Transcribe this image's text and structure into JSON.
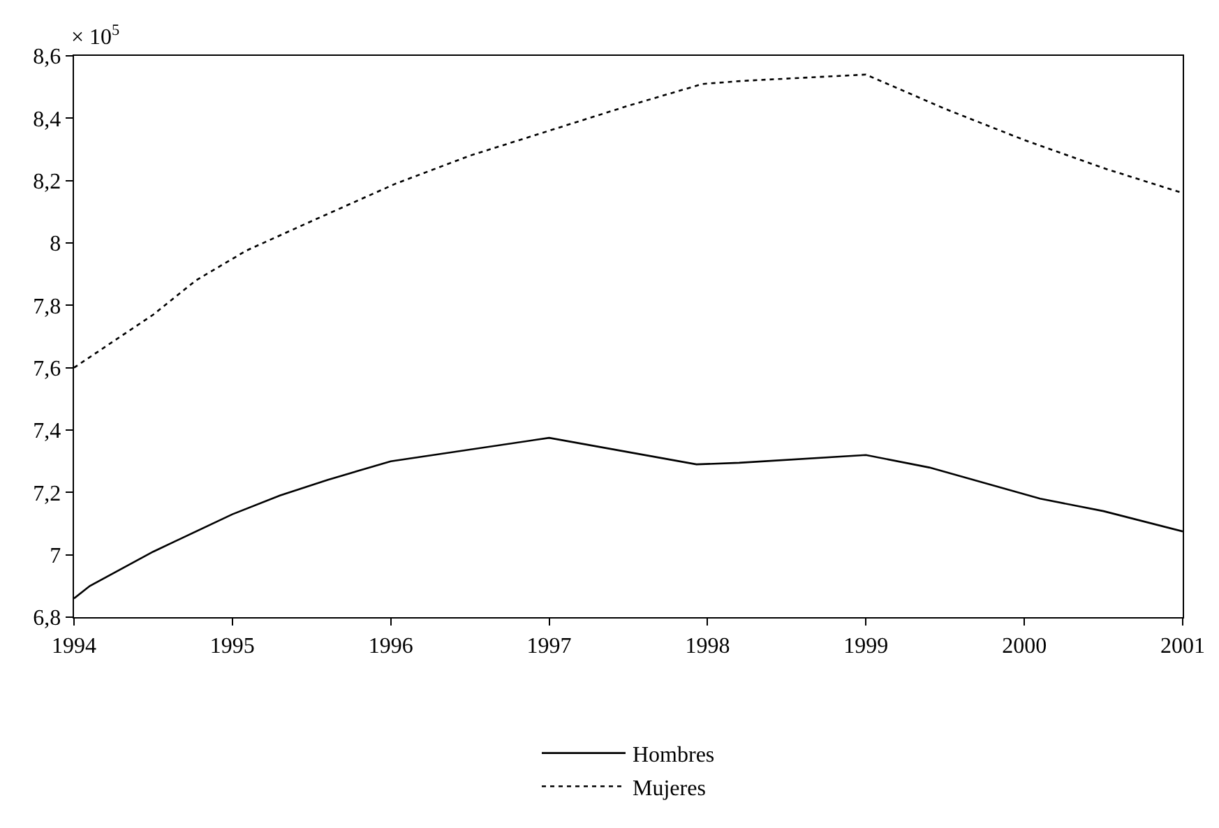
{
  "chart_data": {
    "type": "line",
    "annotations": [
      "× 10$^{5}$"
    ],
    "series": [
      {
        "name": "Hombres",
        "color": "#000000",
        "line_style": "solid",
        "x": [
          1994,
          1994.1,
          1994.5,
          1995,
          1995.3,
          1995.6,
          1996,
          1997,
          1997.93,
          1998.2,
          1999,
          1999.4,
          2000.1,
          2000.5,
          2001
        ],
        "values": [
          6.86,
          6.9,
          7.01,
          7.13,
          7.19,
          7.24,
          7.3,
          7.375,
          7.29,
          7.295,
          7.32,
          7.28,
          7.18,
          7.14,
          7.075
        ]
      },
      {
        "name": "Mujeres",
        "color": "#000000",
        "line_style": "dotted",
        "x": [
          1994,
          1994.5,
          1994.77,
          1995.09,
          1995.5,
          1996.03,
          1996.5,
          1997,
          1997.5,
          1997.97,
          1998.23,
          1999,
          1999.5,
          2000,
          2000.5,
          2001
        ],
        "values": [
          7.6,
          7.77,
          7.88,
          7.976,
          8.07,
          8.19,
          8.28,
          8.36,
          8.44,
          8.51,
          8.52,
          8.54,
          8.43,
          8.33,
          8.24,
          8.16
        ]
      }
    ],
    "xlim": [
      1994,
      2001
    ],
    "xticks": [
      1994,
      1995,
      1996,
      1997,
      1998,
      1999,
      2000,
      2001
    ],
    "ylim": [
      6.8,
      8.6
    ],
    "yticks": [
      {
        "value": 6.8,
        "label": "6,8"
      },
      7,
      {
        "value": 7.2,
        "label": "7,2"
      },
      {
        "value": 7.4,
        "label": "7,4"
      },
      {
        "value": 7.6,
        "label": "7,6"
      },
      {
        "value": 7.8,
        "label": "7,8"
      },
      8,
      {
        "value": 8.2,
        "label": "8,2"
      },
      {
        "value": 8.4,
        "label": "8,4"
      },
      {
        "value": 8.6,
        "label": "8,6"
      }
    ],
    "grid": false,
    "legend": "bottom",
    "marker": "none"
  }
}
